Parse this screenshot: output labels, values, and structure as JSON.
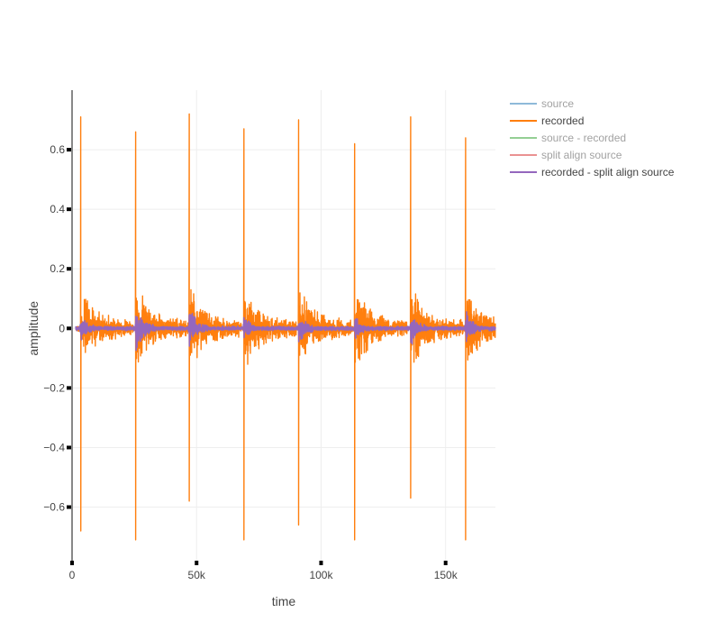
{
  "chart_data": {
    "type": "line",
    "title": "",
    "xlabel": "time",
    "ylabel": "amplitude",
    "xlim": [
      0,
      170000
    ],
    "ylim": [
      -0.78,
      0.8
    ],
    "x_ticks": [
      0,
      50000,
      100000,
      150000
    ],
    "x_tick_labels": [
      "0",
      "50k",
      "100k",
      "150k"
    ],
    "y_ticks": [
      -0.6,
      -0.4,
      -0.2,
      0,
      0.2,
      0.4,
      0.6
    ],
    "y_tick_labels": [
      "−0.6",
      "−0.4",
      "−0.2",
      "0",
      "0.2",
      "0.4",
      "0.6"
    ],
    "grid": true,
    "legend_position": "top-right",
    "series": [
      {
        "name": "source",
        "color": "#1f77b4",
        "visible": false
      },
      {
        "name": "recorded",
        "color": "#ff7f0e",
        "visible": true,
        "peaks": [
          {
            "x": 3500,
            "max": 0.71,
            "min": -0.68
          },
          {
            "x": 25500,
            "max": 0.66,
            "min": -0.71
          },
          {
            "x": 47000,
            "max": 0.72,
            "min": -0.58
          },
          {
            "x": 69000,
            "max": 0.67,
            "min": -0.71
          },
          {
            "x": 91000,
            "max": 0.7,
            "min": -0.66
          },
          {
            "x": 113500,
            "max": 0.62,
            "min": -0.71
          },
          {
            "x": 136000,
            "max": 0.71,
            "min": -0.57
          },
          {
            "x": 158000,
            "max": 0.64,
            "min": -0.71
          }
        ]
      },
      {
        "name": "source - recorded",
        "color": "#2ca02c",
        "visible": false
      },
      {
        "name": "split align source",
        "color": "#d62728",
        "visible": false
      },
      {
        "name": "recorded - split align source",
        "color": "#9467bd",
        "visible": true,
        "peaks": [
          {
            "x": 3500,
            "max": 0.05,
            "min": -0.05
          },
          {
            "x": 25500,
            "max": 0.11,
            "min": -0.14
          },
          {
            "x": 47000,
            "max": 0.08,
            "min": -0.05
          },
          {
            "x": 69000,
            "max": 0.05,
            "min": -0.04
          },
          {
            "x": 91000,
            "max": 0.06,
            "min": -0.05
          },
          {
            "x": 113500,
            "max": 0.05,
            "min": -0.05
          },
          {
            "x": 136000,
            "max": 0.07,
            "min": -0.06
          },
          {
            "x": 158000,
            "max": 0.07,
            "min": -0.07
          }
        ]
      }
    ]
  }
}
